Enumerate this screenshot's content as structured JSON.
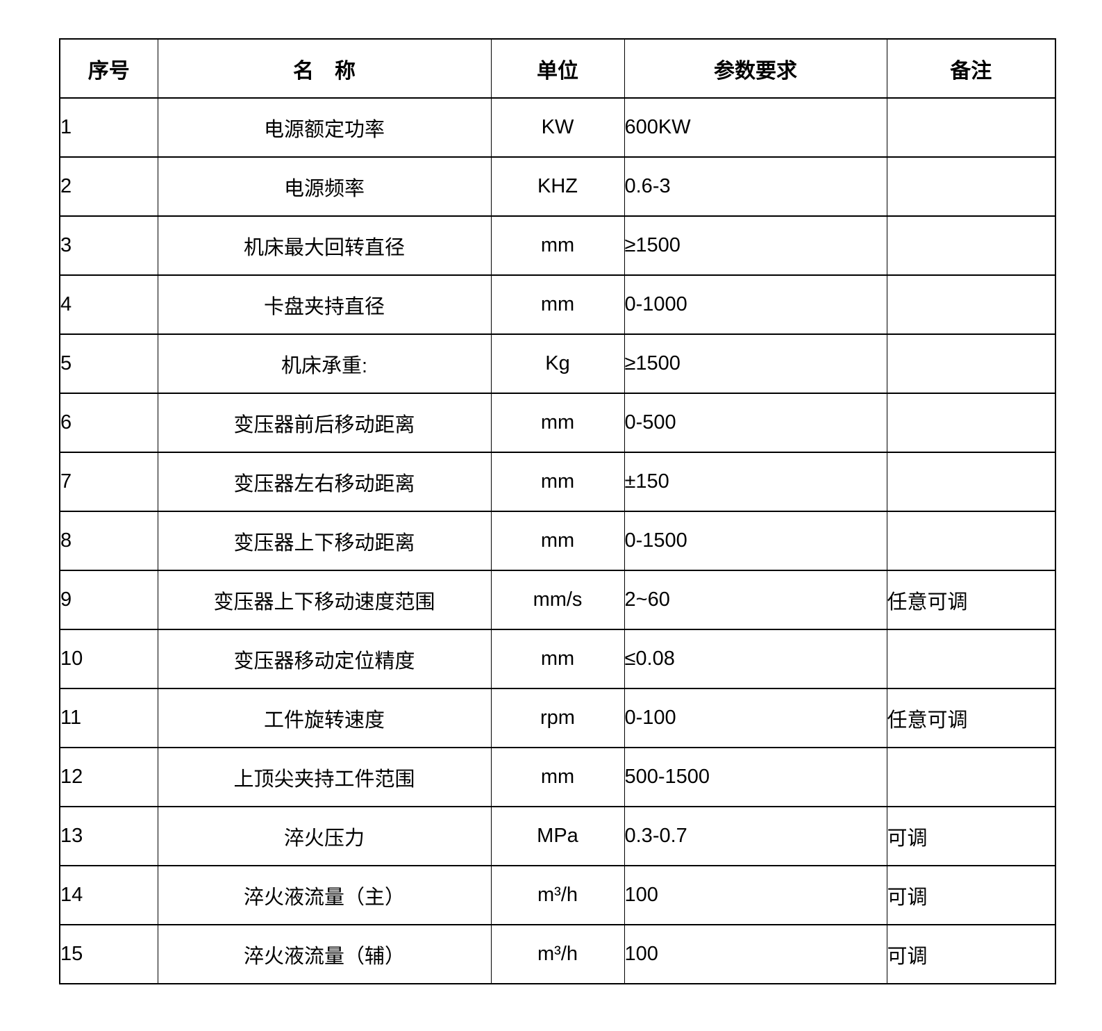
{
  "table": {
    "headers": {
      "no": "序号",
      "name": "名　称",
      "unit": "单位",
      "param": "参数要求",
      "note": "备注"
    },
    "rows": [
      {
        "no": "1",
        "name": "电源额定功率",
        "unit": "KW",
        "param": "600KW",
        "note": ""
      },
      {
        "no": "2",
        "name": "电源频率",
        "unit": "KHZ",
        "param": "0.6-3",
        "note": ""
      },
      {
        "no": "3",
        "name": "机床最大回转直径",
        "unit": "mm",
        "param": "≥1500",
        "note": ""
      },
      {
        "no": "4",
        "name": "卡盘夹持直径",
        "unit": "mm",
        "param": "0-1000",
        "note": ""
      },
      {
        "no": "5",
        "name": "机床承重:",
        "unit": "Kg",
        "param": "≥1500",
        "note": ""
      },
      {
        "no": "6",
        "name": "变压器前后移动距离",
        "unit": "mm",
        "param": "0-500",
        "note": ""
      },
      {
        "no": "7",
        "name": "变压器左右移动距离",
        "unit": "mm",
        "param": "±150",
        "note": ""
      },
      {
        "no": "8",
        "name": "变压器上下移动距离",
        "unit": "mm",
        "param": "0-1500",
        "note": ""
      },
      {
        "no": "9",
        "name": "变压器上下移动速度范围",
        "unit": "mm/s",
        "param": "2~60",
        "note": "任意可调"
      },
      {
        "no": "10",
        "name": "变压器移动定位精度",
        "unit": "mm",
        "param": "≤0.08",
        "note": ""
      },
      {
        "no": "11",
        "name": "工件旋转速度",
        "unit": "rpm",
        "param": "0-100",
        "note": "任意可调"
      },
      {
        "no": "12",
        "name": "上顶尖夹持工件范围",
        "unit": "mm",
        "param": "500-1500",
        "note": ""
      },
      {
        "no": "13",
        "name": "淬火压力",
        "unit": "MPa",
        "param": "0.3-0.7",
        "note": "可调"
      },
      {
        "no": "14",
        "name": "淬火液流量（主）",
        "unit": "m³/h",
        "param": "100",
        "note": "可调"
      },
      {
        "no": "15",
        "name": "淬火液流量（辅）",
        "unit": "m³/h",
        "param": "100",
        "note": "可调"
      }
    ]
  }
}
